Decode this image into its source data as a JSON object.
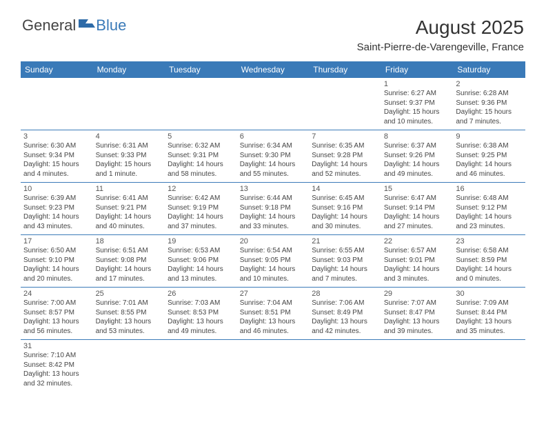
{
  "logo": {
    "part1": "General",
    "part2": "Blue"
  },
  "title": "August 2025",
  "location": "Saint-Pierre-de-Varengeville, France",
  "colors": {
    "header_bg": "#3a7ab8",
    "border": "#3a7ab8",
    "text": "#444444"
  },
  "weekdays": [
    "Sunday",
    "Monday",
    "Tuesday",
    "Wednesday",
    "Thursday",
    "Friday",
    "Saturday"
  ],
  "weeks": [
    [
      null,
      null,
      null,
      null,
      null,
      {
        "d": "1",
        "sr": "Sunrise: 6:27 AM",
        "ss": "Sunset: 9:37 PM",
        "dl1": "Daylight: 15 hours",
        "dl2": "and 10 minutes."
      },
      {
        "d": "2",
        "sr": "Sunrise: 6:28 AM",
        "ss": "Sunset: 9:36 PM",
        "dl1": "Daylight: 15 hours",
        "dl2": "and 7 minutes."
      }
    ],
    [
      {
        "d": "3",
        "sr": "Sunrise: 6:30 AM",
        "ss": "Sunset: 9:34 PM",
        "dl1": "Daylight: 15 hours",
        "dl2": "and 4 minutes."
      },
      {
        "d": "4",
        "sr": "Sunrise: 6:31 AM",
        "ss": "Sunset: 9:33 PM",
        "dl1": "Daylight: 15 hours",
        "dl2": "and 1 minute."
      },
      {
        "d": "5",
        "sr": "Sunrise: 6:32 AM",
        "ss": "Sunset: 9:31 PM",
        "dl1": "Daylight: 14 hours",
        "dl2": "and 58 minutes."
      },
      {
        "d": "6",
        "sr": "Sunrise: 6:34 AM",
        "ss": "Sunset: 9:30 PM",
        "dl1": "Daylight: 14 hours",
        "dl2": "and 55 minutes."
      },
      {
        "d": "7",
        "sr": "Sunrise: 6:35 AM",
        "ss": "Sunset: 9:28 PM",
        "dl1": "Daylight: 14 hours",
        "dl2": "and 52 minutes."
      },
      {
        "d": "8",
        "sr": "Sunrise: 6:37 AM",
        "ss": "Sunset: 9:26 PM",
        "dl1": "Daylight: 14 hours",
        "dl2": "and 49 minutes."
      },
      {
        "d": "9",
        "sr": "Sunrise: 6:38 AM",
        "ss": "Sunset: 9:25 PM",
        "dl1": "Daylight: 14 hours",
        "dl2": "and 46 minutes."
      }
    ],
    [
      {
        "d": "10",
        "sr": "Sunrise: 6:39 AM",
        "ss": "Sunset: 9:23 PM",
        "dl1": "Daylight: 14 hours",
        "dl2": "and 43 minutes."
      },
      {
        "d": "11",
        "sr": "Sunrise: 6:41 AM",
        "ss": "Sunset: 9:21 PM",
        "dl1": "Daylight: 14 hours",
        "dl2": "and 40 minutes."
      },
      {
        "d": "12",
        "sr": "Sunrise: 6:42 AM",
        "ss": "Sunset: 9:19 PM",
        "dl1": "Daylight: 14 hours",
        "dl2": "and 37 minutes."
      },
      {
        "d": "13",
        "sr": "Sunrise: 6:44 AM",
        "ss": "Sunset: 9:18 PM",
        "dl1": "Daylight: 14 hours",
        "dl2": "and 33 minutes."
      },
      {
        "d": "14",
        "sr": "Sunrise: 6:45 AM",
        "ss": "Sunset: 9:16 PM",
        "dl1": "Daylight: 14 hours",
        "dl2": "and 30 minutes."
      },
      {
        "d": "15",
        "sr": "Sunrise: 6:47 AM",
        "ss": "Sunset: 9:14 PM",
        "dl1": "Daylight: 14 hours",
        "dl2": "and 27 minutes."
      },
      {
        "d": "16",
        "sr": "Sunrise: 6:48 AM",
        "ss": "Sunset: 9:12 PM",
        "dl1": "Daylight: 14 hours",
        "dl2": "and 23 minutes."
      }
    ],
    [
      {
        "d": "17",
        "sr": "Sunrise: 6:50 AM",
        "ss": "Sunset: 9:10 PM",
        "dl1": "Daylight: 14 hours",
        "dl2": "and 20 minutes."
      },
      {
        "d": "18",
        "sr": "Sunrise: 6:51 AM",
        "ss": "Sunset: 9:08 PM",
        "dl1": "Daylight: 14 hours",
        "dl2": "and 17 minutes."
      },
      {
        "d": "19",
        "sr": "Sunrise: 6:53 AM",
        "ss": "Sunset: 9:06 PM",
        "dl1": "Daylight: 14 hours",
        "dl2": "and 13 minutes."
      },
      {
        "d": "20",
        "sr": "Sunrise: 6:54 AM",
        "ss": "Sunset: 9:05 PM",
        "dl1": "Daylight: 14 hours",
        "dl2": "and 10 minutes."
      },
      {
        "d": "21",
        "sr": "Sunrise: 6:55 AM",
        "ss": "Sunset: 9:03 PM",
        "dl1": "Daylight: 14 hours",
        "dl2": "and 7 minutes."
      },
      {
        "d": "22",
        "sr": "Sunrise: 6:57 AM",
        "ss": "Sunset: 9:01 PM",
        "dl1": "Daylight: 14 hours",
        "dl2": "and 3 minutes."
      },
      {
        "d": "23",
        "sr": "Sunrise: 6:58 AM",
        "ss": "Sunset: 8:59 PM",
        "dl1": "Daylight: 14 hours",
        "dl2": "and 0 minutes."
      }
    ],
    [
      {
        "d": "24",
        "sr": "Sunrise: 7:00 AM",
        "ss": "Sunset: 8:57 PM",
        "dl1": "Daylight: 13 hours",
        "dl2": "and 56 minutes."
      },
      {
        "d": "25",
        "sr": "Sunrise: 7:01 AM",
        "ss": "Sunset: 8:55 PM",
        "dl1": "Daylight: 13 hours",
        "dl2": "and 53 minutes."
      },
      {
        "d": "26",
        "sr": "Sunrise: 7:03 AM",
        "ss": "Sunset: 8:53 PM",
        "dl1": "Daylight: 13 hours",
        "dl2": "and 49 minutes."
      },
      {
        "d": "27",
        "sr": "Sunrise: 7:04 AM",
        "ss": "Sunset: 8:51 PM",
        "dl1": "Daylight: 13 hours",
        "dl2": "and 46 minutes."
      },
      {
        "d": "28",
        "sr": "Sunrise: 7:06 AM",
        "ss": "Sunset: 8:49 PM",
        "dl1": "Daylight: 13 hours",
        "dl2": "and 42 minutes."
      },
      {
        "d": "29",
        "sr": "Sunrise: 7:07 AM",
        "ss": "Sunset: 8:47 PM",
        "dl1": "Daylight: 13 hours",
        "dl2": "and 39 minutes."
      },
      {
        "d": "30",
        "sr": "Sunrise: 7:09 AM",
        "ss": "Sunset: 8:44 PM",
        "dl1": "Daylight: 13 hours",
        "dl2": "and 35 minutes."
      }
    ],
    [
      {
        "d": "31",
        "sr": "Sunrise: 7:10 AM",
        "ss": "Sunset: 8:42 PM",
        "dl1": "Daylight: 13 hours",
        "dl2": "and 32 minutes."
      },
      null,
      null,
      null,
      null,
      null,
      null
    ]
  ]
}
